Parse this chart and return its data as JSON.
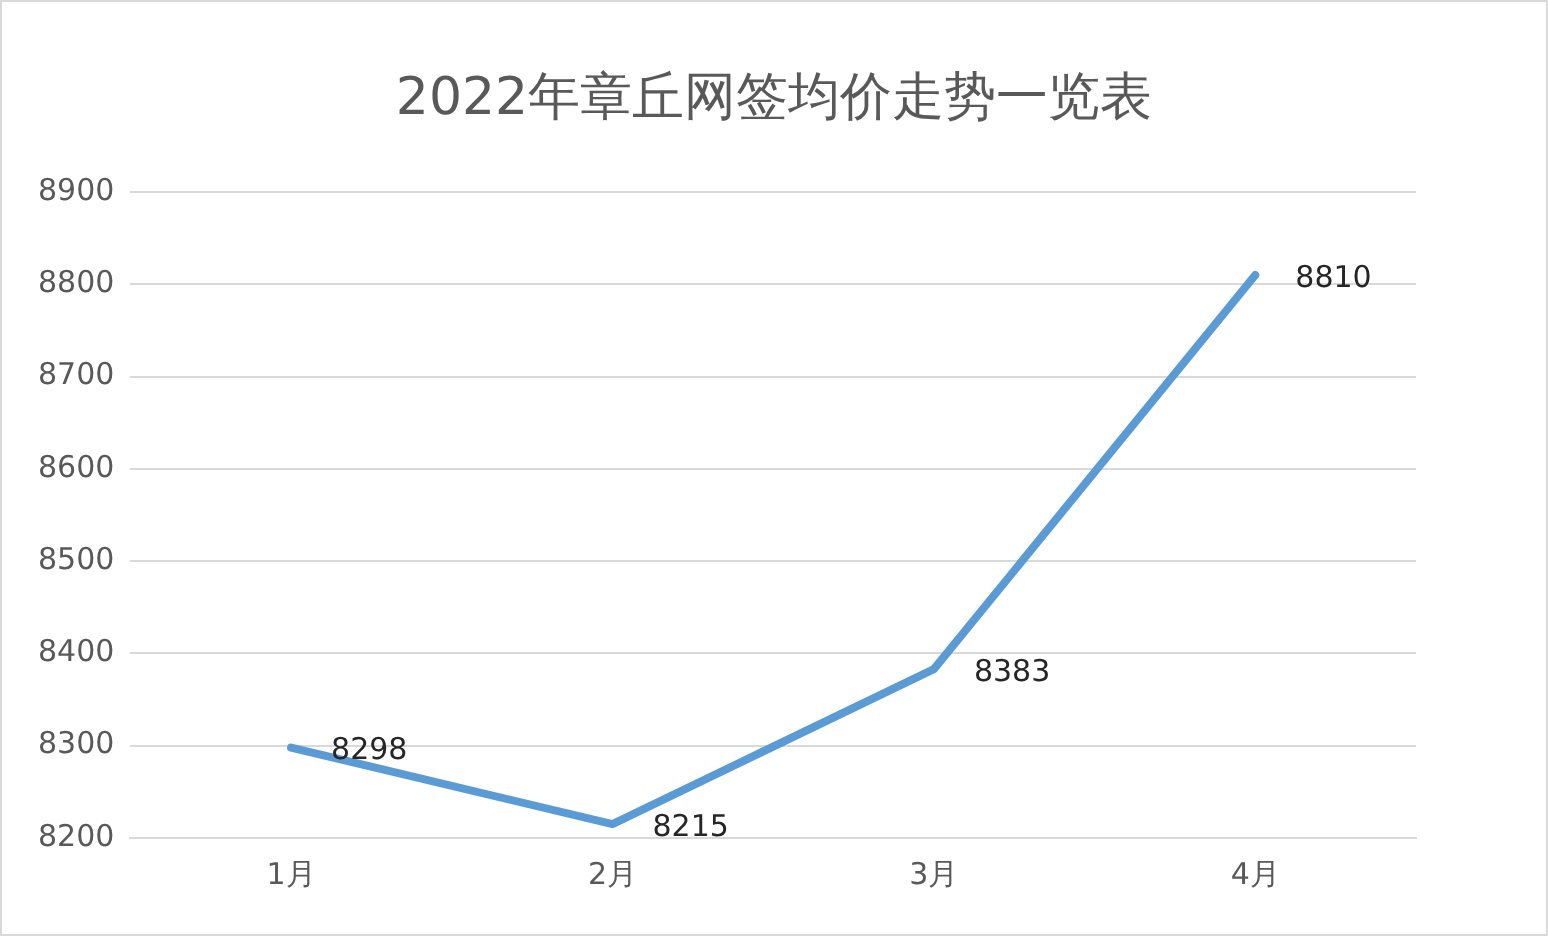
{
  "chart_data": {
    "type": "line",
    "title": "2022年章丘网签均价走势一览表",
    "categories": [
      "1月",
      "2月",
      "3月",
      "4月"
    ],
    "series": [
      {
        "color": "#5b9bd5",
        "values": [
          8298,
          8215,
          8383,
          8810
        ]
      }
    ],
    "ylim": [
      8200,
      8900
    ],
    "yticks": [
      8200,
      8300,
      8400,
      8500,
      8600,
      8700,
      8800,
      8900
    ],
    "grid": "y",
    "legend": false,
    "marker": "none",
    "line_style": "solid",
    "data_labels": true
  }
}
